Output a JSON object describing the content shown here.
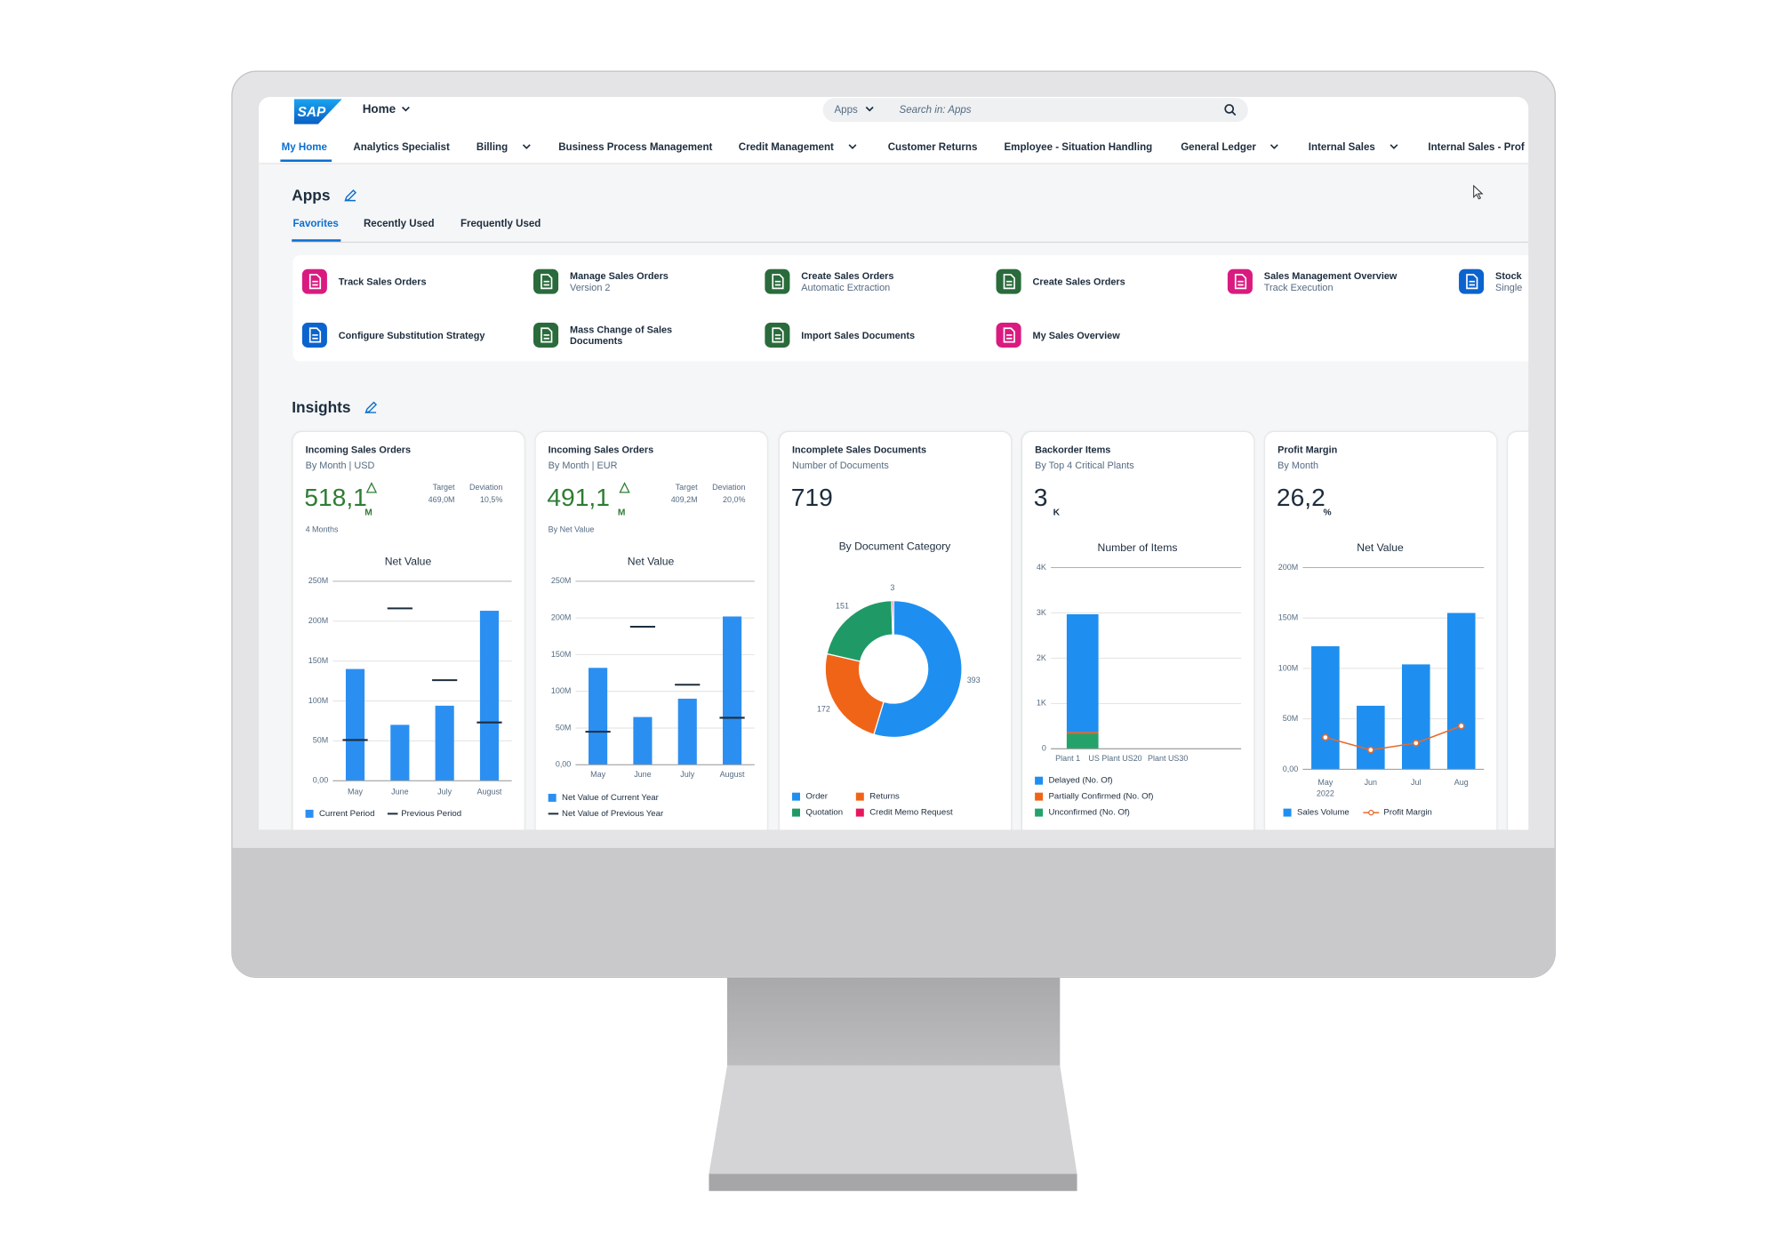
{
  "header": {
    "logo": "SAP",
    "home": "Home",
    "search_scope": "Apps",
    "search_placeholder": "Search in: Apps"
  },
  "nav": {
    "tabs": [
      {
        "label": "My Home",
        "menu": false
      },
      {
        "label": "Analytics Specialist",
        "menu": false
      },
      {
        "label": "Billing",
        "menu": true
      },
      {
        "label": "Business Process Management",
        "menu": false
      },
      {
        "label": "Credit Management",
        "menu": true
      },
      {
        "label": "Customer Returns",
        "menu": false
      },
      {
        "label": "Employee - Situation Handling",
        "menu": false
      },
      {
        "label": "General Ledger",
        "menu": true
      },
      {
        "label": "Internal Sales",
        "menu": true
      },
      {
        "label": "Internal Sales - Prof",
        "menu": false
      }
    ]
  },
  "apps": {
    "title": "Apps",
    "tabs": [
      "Favorites",
      "Recently Used",
      "Frequently Used"
    ],
    "tiles": [
      {
        "title": "Track Sales Orders",
        "color": "#d91b7f"
      },
      {
        "title": "Manage Sales Orders",
        "subtitle": "Version 2",
        "color": "#2a6b3c"
      },
      {
        "title": "Create Sales Orders",
        "subtitle": "Automatic Extraction",
        "color": "#2a6b3c"
      },
      {
        "title": "Create Sales Orders",
        "color": "#2a6b3c"
      },
      {
        "title": "Sales Management Overview",
        "subtitle": "Track Execution",
        "color": "#d91b7f"
      },
      {
        "title": "Stock",
        "subtitle": "Single",
        "color": "#0b63ce"
      },
      {
        "title": "Configure Substitution Strategy",
        "color": "#0b63ce"
      },
      {
        "title": "Mass Change of Sales Documents",
        "color": "#2a6b3c"
      },
      {
        "title": "Import Sales Documents",
        "color": "#2a6b3c"
      },
      {
        "title": "My Sales Overview",
        "color": "#d91b7f"
      }
    ]
  },
  "insights": {
    "title": "Insights",
    "cards": [
      {
        "title": "Incoming Sales Orders",
        "subtitle": "By Month | USD",
        "kpi": {
          "value": "518,1",
          "unit": "M",
          "color": "#2e7d32",
          "trend": "up",
          "target_label": "Target",
          "target": "469,0M",
          "deviation_label": "Deviation",
          "deviation": "10,5%"
        },
        "note": "4 Months",
        "chart": {
          "type": "bar",
          "title": "Net Value",
          "categories": [
            "May",
            "June",
            "July",
            "August"
          ],
          "series": [
            {
              "name": "Current Period",
              "color": "#2b8ff2",
              "values": [
                140,
                70,
                94,
                213
              ]
            },
            {
              "name": "Previous Period",
              "color": "#1d2d3e",
              "mark": "dash",
              "values": [
                51,
                216,
                126,
                73
              ]
            }
          ],
          "ylim": [
            0,
            250
          ],
          "yticks": [
            {
              "value": 0,
              "label": "0,00"
            },
            {
              "value": 50,
              "label": "50M"
            },
            {
              "value": 100,
              "label": "100M"
            },
            {
              "value": 150,
              "label": "150M"
            },
            {
              "value": 200,
              "label": "200M"
            },
            {
              "value": 250,
              "label": "250M"
            }
          ],
          "grid": true
        }
      },
      {
        "title": "Incoming Sales Orders",
        "subtitle": "By Month | EUR",
        "kpi": {
          "value": "491,1",
          "unit": "M",
          "color": "#2e7d32",
          "trend": "up",
          "target_label": "Target",
          "target": "409,2M",
          "deviation_label": "Deviation",
          "deviation": "20,0%"
        },
        "note": "By Net Value",
        "chart": {
          "type": "bar",
          "title": "Net Value",
          "categories": [
            "May",
            "June",
            "July",
            "August"
          ],
          "series": [
            {
              "name": "Net Value of Current Year",
              "color": "#2b8ff2",
              "values": [
                132,
                65,
                90,
                202
              ]
            },
            {
              "name": "Net Value of Previous Year",
              "color": "#1d2d3e",
              "mark": "dash",
              "values": [
                45,
                188,
                109,
                64
              ]
            }
          ],
          "ylim": [
            0,
            250
          ],
          "yticks": [
            {
              "value": 0,
              "label": "0,00"
            },
            {
              "value": 50,
              "label": "50M"
            },
            {
              "value": 100,
              "label": "100M"
            },
            {
              "value": 150,
              "label": "150M"
            },
            {
              "value": 200,
              "label": "200M"
            },
            {
              "value": 250,
              "label": "250M"
            }
          ],
          "grid": true
        }
      },
      {
        "title": "Incomplete Sales Documents",
        "subtitle": "Number of Documents",
        "kpi": {
          "value": "719",
          "color": "#1d2d3e"
        },
        "chart": {
          "type": "donut",
          "title": "By Document Category",
          "categories": [
            "Order",
            "Returns",
            "Quotation",
            "Credit Memo Request"
          ],
          "values": [
            393,
            172,
            151,
            3
          ],
          "colors": [
            "#1e8ff0",
            "#f06418",
            "#1f9a66",
            "#e8175d"
          ]
        }
      },
      {
        "title": "Backorder Items",
        "subtitle": "By Top 4 Critical Plants",
        "kpi": {
          "value": "3",
          "unit": "K",
          "color": "#1d2d3e"
        },
        "chart": {
          "type": "bar",
          "title": "Number of Items",
          "stacked": true,
          "categories": [
            "Plant 1",
            "US Plant US20",
            "Plant US30"
          ],
          "series": [
            {
              "name": "Delayed (No. Of)",
              "color": "#1e8ff0",
              "values": [
                2600,
                0,
                0
              ]
            },
            {
              "name": "Partially Confirmed (No. Of)",
              "color": "#f06418",
              "values": [
                40,
                0,
                0
              ]
            },
            {
              "name": "Unconfirmed (No. Of)",
              "color": "#23a36b",
              "values": [
                330,
                0,
                0
              ]
            }
          ],
          "ylim": [
            0,
            4000
          ],
          "yticks": [
            0,
            {
              "value": 1000,
              "label": "1K"
            },
            {
              "value": 2000,
              "label": "2K"
            },
            {
              "value": 3000,
              "label": "3K"
            },
            {
              "value": 4000,
              "label": "4K"
            }
          ],
          "grid": true
        }
      },
      {
        "title": "Profit Margin",
        "subtitle": "By Month",
        "kpi": {
          "value": "26,2",
          "unit": "%",
          "color": "#1d2d3e"
        },
        "chart": {
          "type": "bar",
          "title": "Net Value",
          "categories": [
            "May 2022",
            "Jun",
            "Jul",
            "Aug"
          ],
          "series": [
            {
              "name": "Sales Volume",
              "color": "#1e8ff0",
              "values": [
                122,
                63,
                104,
                155
              ]
            },
            {
              "name": "Profit Margin",
              "color": "#e76a2c",
              "type": "line",
              "axis": "y2",
              "values": [
                15.8,
                9.6,
                13,
                21.5
              ]
            }
          ],
          "ylim": [
            0,
            200
          ],
          "yticks": [
            {
              "value": 0,
              "label": "0,00"
            },
            {
              "value": 50,
              "label": "50M"
            },
            {
              "value": 100,
              "label": "100M"
            },
            {
              "value": 150,
              "label": "150M"
            },
            {
              "value": 200,
              "label": "200M"
            }
          ],
          "y2lim": [
            0,
            100
          ],
          "grid": true
        }
      }
    ]
  }
}
